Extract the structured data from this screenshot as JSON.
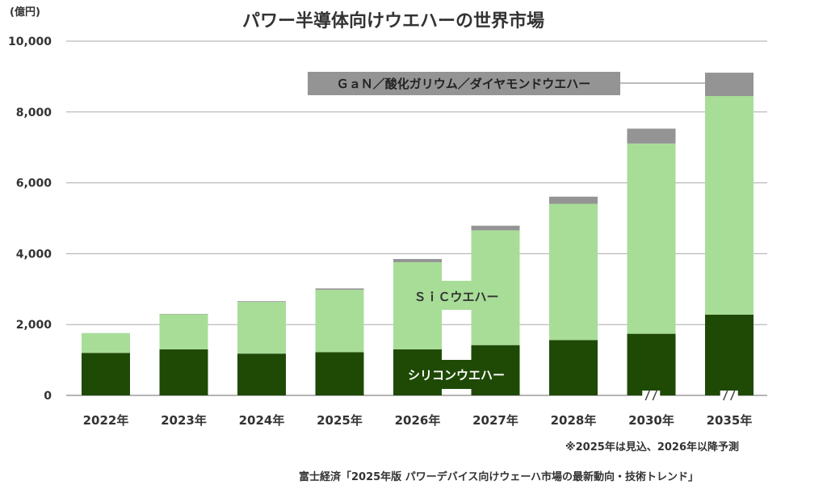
{
  "chart_data": {
    "type": "bar",
    "stacked": true,
    "title": "パワー半導体向けウエハーの世界市場",
    "unit_label": "(億円)",
    "categories": [
      "2022年",
      "2023年",
      "2024年",
      "2025年",
      "2026年",
      "2027年",
      "2028年",
      "2030年",
      "2035年"
    ],
    "ylim": [
      0,
      10000
    ],
    "yticks": [
      "0",
      "2,000",
      "4,000",
      "6,000",
      "8,000",
      "10,000"
    ],
    "ytick_values": [
      0,
      2000,
      4000,
      6000,
      8000,
      10000
    ],
    "grid": true,
    "series": [
      {
        "name": "シリコンウエハー",
        "color": "#1f4a06",
        "values": [
          1200,
          1300,
          1180,
          1220,
          1300,
          1420,
          1560,
          1740,
          2280
        ]
      },
      {
        "name": "ＳｉＣウエハー",
        "color": "#a8dd98",
        "values": [
          560,
          990,
          1460,
          1760,
          2460,
          3240,
          3850,
          5370,
          6170
        ]
      },
      {
        "name": "ＧａＮ／酸化ガリウム／ダイヤモンドウエハー",
        "color": "#949494",
        "values": [
          0,
          10,
          20,
          40,
          90,
          130,
          200,
          420,
          660
        ]
      }
    ],
    "axis_breaks_after": [
      "2028年",
      "2030年"
    ],
    "note": "※2025年は見込、2026年以降予測",
    "source": "富士経済「2025年版 パワーデバイス向けウェーハ市場の最新動向・技術トレンド」"
  }
}
